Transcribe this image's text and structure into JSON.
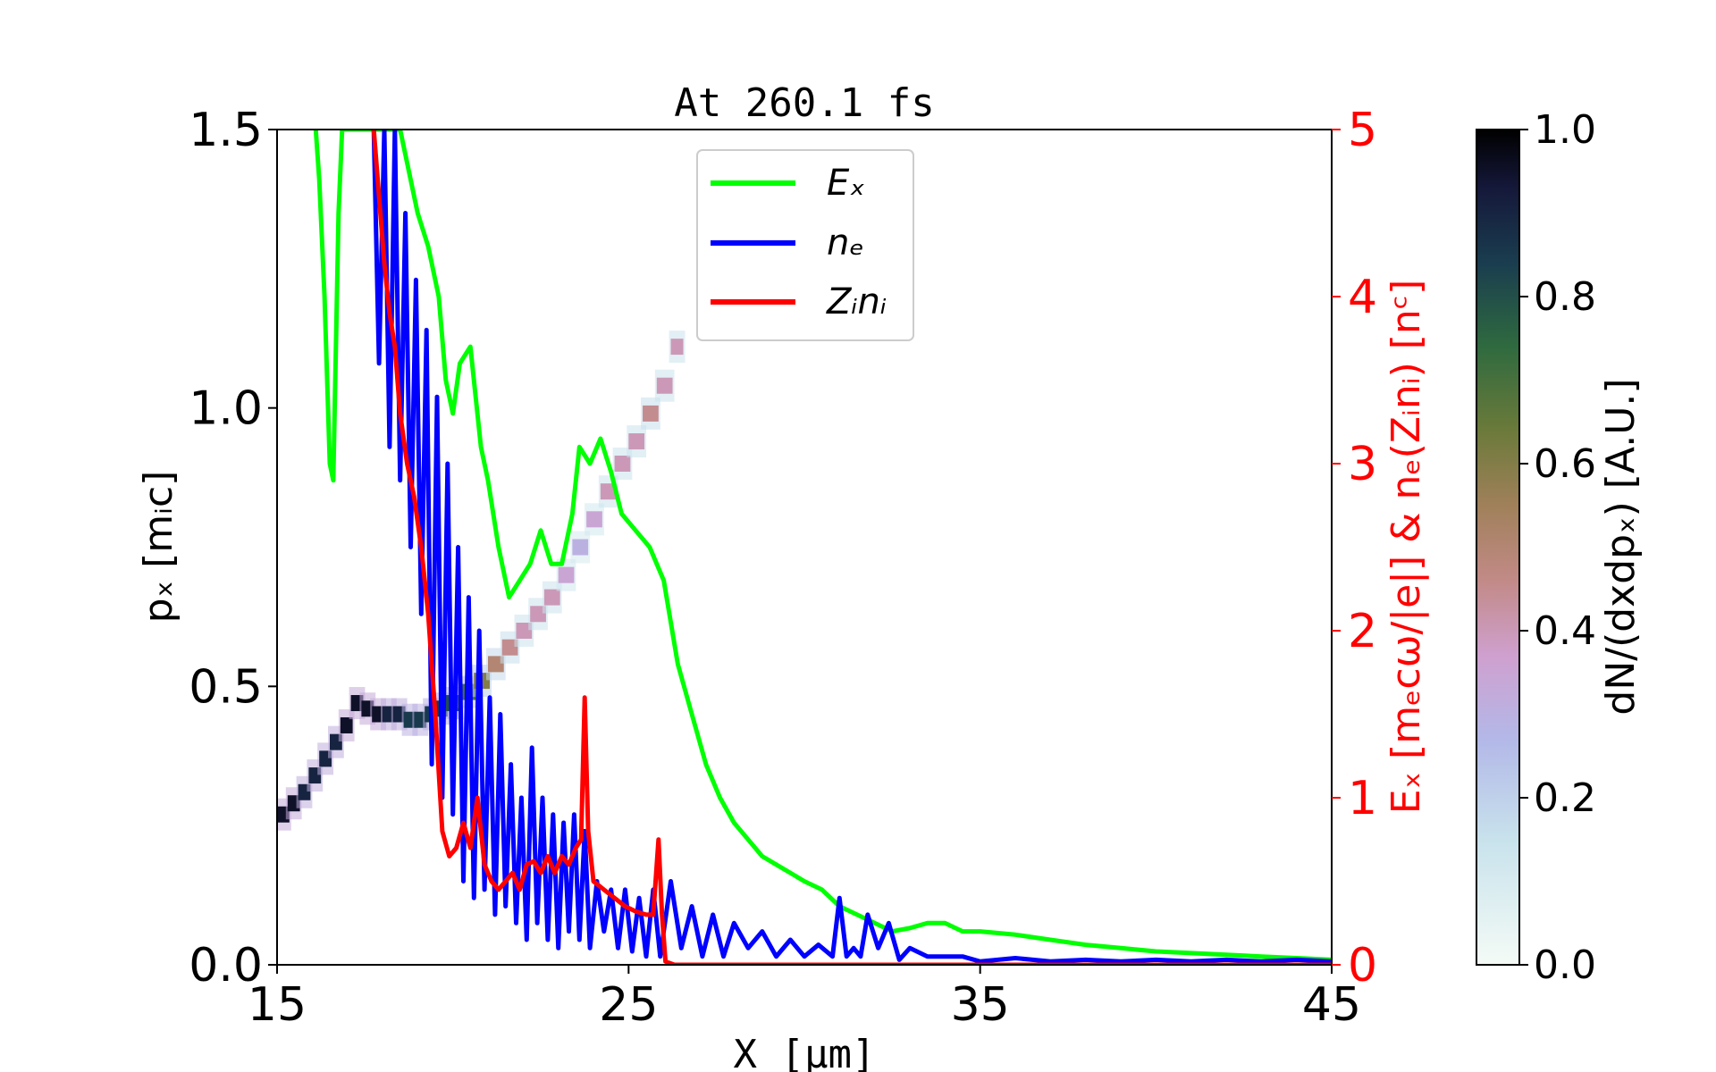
{
  "chart_data": {
    "type": "line",
    "title": "At 260.1 fs",
    "xlabel": "X [μm]",
    "ylabel_left": "pₓ [mᵢc]",
    "ylabel_right": "Eₓ [mₑcω/|e|] & nₑ(Zᵢnᵢ) [nᶜ]",
    "colorbar_label": "dN/(dxdpₓ) [A.U.]",
    "xlim": [
      15,
      45
    ],
    "ylim_left": [
      0,
      1.5
    ],
    "ylim_right": [
      0,
      5
    ],
    "x_ticks": [
      "15",
      "25",
      "35",
      "45"
    ],
    "y_ticks_left": [
      "0.0",
      "0.5",
      "1.0",
      "1.5"
    ],
    "y_ticks_right": [
      "0",
      "1",
      "2",
      "3",
      "4",
      "5"
    ],
    "colorbar_ticks": [
      "0.0",
      "0.2",
      "0.4",
      "0.6",
      "0.8",
      "1.0"
    ],
    "colorbar_range": [
      0,
      1
    ],
    "colors": {
      "Ex": "#00ff00",
      "ne": "#0000ff",
      "Zini": "#ff0000",
      "right_axis": "#ff0000"
    },
    "legend": [
      "Eₓ",
      "nₑ",
      "Zᵢnᵢ"
    ],
    "legend_position": "top-center",
    "series": [
      {
        "name": "Eₓ",
        "color": "#00ff00",
        "x": [
          16.1,
          16.2,
          16.35,
          16.5,
          16.6,
          16.75,
          16.85,
          17.0,
          17.5,
          18.0,
          18.5,
          19.0,
          19.3,
          19.6,
          19.8,
          20.0,
          20.2,
          20.5,
          20.8,
          21.0,
          21.3,
          21.6,
          21.9,
          22.2,
          22.5,
          22.8,
          23.1,
          23.4,
          23.6,
          23.9,
          24.2,
          24.5,
          24.8,
          25.2,
          25.6,
          26.0,
          26.4,
          26.8,
          27.2,
          27.6,
          28.0,
          28.4,
          28.8,
          29.2,
          29.6,
          30.0,
          30.5,
          31.0,
          31.5,
          32.0,
          32.5,
          33.0,
          33.5,
          34.0,
          34.5,
          35.0,
          36.0,
          37.0,
          38.0,
          39.0,
          40.0,
          41.0,
          42.0,
          43.0,
          44.0,
          45.0
        ],
        "values": [
          5.0,
          4.7,
          4.0,
          3.0,
          2.9,
          4.5,
          5.0,
          5.0,
          5.0,
          5.0,
          5.0,
          4.5,
          4.3,
          4.0,
          3.5,
          3.3,
          3.6,
          3.7,
          3.1,
          2.9,
          2.5,
          2.2,
          2.3,
          2.4,
          2.6,
          2.4,
          2.4,
          2.7,
          3.1,
          3.0,
          3.15,
          2.95,
          2.7,
          2.6,
          2.5,
          2.3,
          1.8,
          1.5,
          1.2,
          1.0,
          0.85,
          0.75,
          0.65,
          0.6,
          0.55,
          0.5,
          0.45,
          0.35,
          0.3,
          0.25,
          0.2,
          0.22,
          0.25,
          0.25,
          0.2,
          0.2,
          0.18,
          0.15,
          0.12,
          0.1,
          0.08,
          0.07,
          0.06,
          0.05,
          0.04,
          0.03
        ]
      },
      {
        "name": "nₑ",
        "color": "#0000ff",
        "x": [
          17.75,
          17.9,
          18.05,
          18.2,
          18.35,
          18.5,
          18.65,
          18.8,
          18.95,
          19.1,
          19.25,
          19.4,
          19.55,
          19.7,
          19.85,
          20.0,
          20.15,
          20.3,
          20.45,
          20.6,
          20.75,
          20.9,
          21.05,
          21.2,
          21.35,
          21.5,
          21.65,
          21.8,
          21.95,
          22.1,
          22.25,
          22.4,
          22.55,
          22.7,
          22.85,
          23.0,
          23.15,
          23.3,
          23.45,
          23.6,
          23.75,
          23.9,
          24.1,
          24.3,
          24.5,
          24.7,
          24.9,
          25.1,
          25.3,
          25.5,
          25.7,
          25.9,
          26.2,
          26.5,
          26.8,
          27.1,
          27.4,
          27.7,
          28.0,
          28.4,
          28.8,
          29.2,
          29.6,
          30.0,
          30.4,
          30.8,
          31.0,
          31.2,
          31.4,
          31.6,
          31.8,
          32.1,
          32.4,
          32.7,
          33.0,
          33.5,
          34.0,
          34.5,
          35.0,
          36.0,
          37.0,
          38.0,
          39.0,
          40.0,
          41.0,
          42.0,
          43.0,
          44.0,
          45.0
        ],
        "values": [
          5.0,
          3.6,
          5.0,
          3.1,
          5.0,
          2.9,
          4.5,
          2.5,
          4.1,
          2.1,
          3.8,
          1.2,
          3.4,
          1.0,
          3.0,
          0.9,
          2.5,
          0.5,
          2.2,
          0.4,
          2.0,
          0.45,
          1.6,
          0.3,
          1.5,
          0.35,
          1.2,
          0.25,
          1.0,
          0.15,
          1.3,
          0.25,
          1.0,
          0.15,
          0.9,
          0.1,
          0.85,
          0.2,
          0.9,
          0.15,
          0.8,
          0.1,
          0.5,
          0.2,
          0.45,
          0.1,
          0.45,
          0.08,
          0.4,
          0.05,
          0.45,
          0.05,
          0.5,
          0.1,
          0.35,
          0.05,
          0.3,
          0.05,
          0.25,
          0.1,
          0.2,
          0.05,
          0.15,
          0.05,
          0.12,
          0.05,
          0.4,
          0.05,
          0.1,
          0.05,
          0.3,
          0.1,
          0.25,
          0.03,
          0.1,
          0.05,
          0.05,
          0.05,
          0.02,
          0.04,
          0.02,
          0.03,
          0.02,
          0.03,
          0.02,
          0.03,
          0.02,
          0.03,
          0.02
        ]
      },
      {
        "name": "Zᵢnᵢ",
        "color": "#ff0000",
        "x": [
          17.75,
          17.9,
          18.05,
          18.2,
          18.35,
          18.5,
          18.7,
          18.9,
          19.1,
          19.3,
          19.5,
          19.7,
          19.9,
          20.1,
          20.3,
          20.5,
          20.7,
          20.9,
          21.1,
          21.3,
          21.5,
          21.7,
          21.9,
          22.1,
          22.3,
          22.5,
          22.7,
          22.9,
          23.1,
          23.3,
          23.5,
          23.65,
          23.75,
          23.85,
          24.0,
          24.3,
          24.6,
          24.9,
          25.2,
          25.5,
          25.7,
          25.85,
          25.95,
          26.05,
          26.3,
          27.0,
          30.0,
          35.0,
          40.0,
          45.0
        ],
        "values": [
          5.0,
          4.6,
          4.2,
          3.9,
          3.7,
          3.3,
          3.0,
          2.8,
          2.5,
          2.1,
          1.5,
          0.8,
          0.65,
          0.7,
          0.85,
          0.7,
          1.0,
          0.6,
          0.5,
          0.45,
          0.5,
          0.55,
          0.45,
          0.6,
          0.62,
          0.55,
          0.65,
          0.55,
          0.65,
          0.6,
          0.7,
          0.75,
          1.6,
          0.8,
          0.5,
          0.45,
          0.4,
          0.35,
          0.32,
          0.3,
          0.3,
          0.75,
          0.3,
          0.02,
          0.0,
          0.0,
          0.0,
          0.0,
          0.0,
          0.0
        ]
      }
    ],
    "density_map": {
      "description": "ion phase-space density dN/(dxdpₓ) on left axis",
      "x": [
        15.0,
        15.3,
        15.6,
        15.9,
        16.2,
        16.5,
        16.8,
        17.1,
        17.4,
        17.7,
        18.0,
        18.3,
        18.6,
        18.9,
        19.2,
        19.5,
        19.8,
        20.2,
        20.6,
        21.0,
        21.4,
        21.8,
        22.2,
        22.6,
        23.0,
        23.4,
        23.8,
        24.2,
        24.6,
        25.0,
        25.4,
        25.8,
        26.2
      ],
      "px": [
        0.27,
        0.29,
        0.31,
        0.34,
        0.37,
        0.4,
        0.43,
        0.47,
        0.46,
        0.45,
        0.45,
        0.45,
        0.44,
        0.44,
        0.45,
        0.46,
        0.47,
        0.49,
        0.51,
        0.54,
        0.57,
        0.6,
        0.63,
        0.66,
        0.7,
        0.75,
        0.8,
        0.85,
        0.9,
        0.94,
        0.99,
        1.04,
        1.11
      ],
      "density": [
        0.95,
        0.95,
        0.9,
        0.9,
        0.9,
        0.9,
        0.95,
        0.95,
        0.95,
        0.95,
        0.9,
        0.9,
        0.85,
        0.85,
        0.85,
        0.85,
        0.8,
        0.7,
        0.6,
        0.5,
        0.45,
        0.4,
        0.4,
        0.4,
        0.35,
        0.3,
        0.35,
        0.4,
        0.4,
        0.4,
        0.45,
        0.4,
        0.4
      ]
    }
  }
}
